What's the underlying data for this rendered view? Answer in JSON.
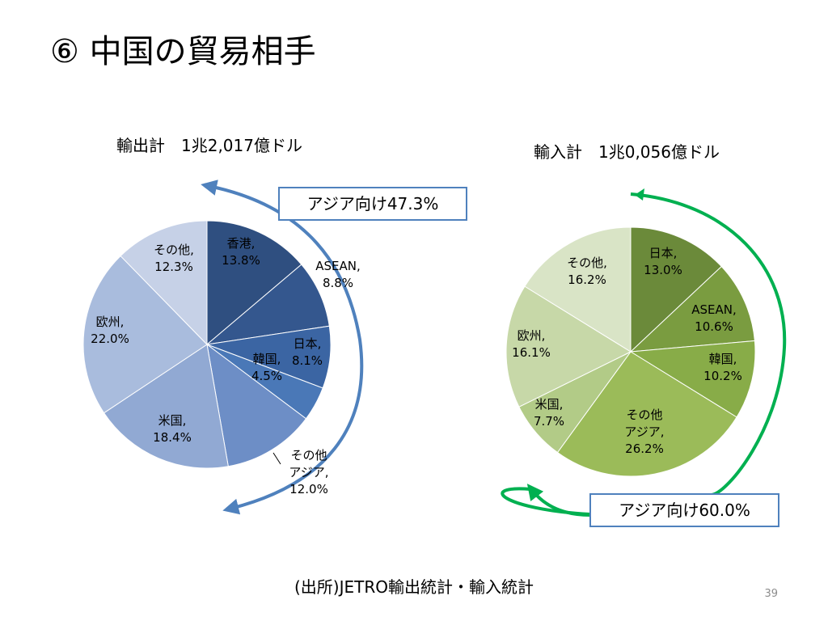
{
  "title": "⑥ 中国の貿易相手",
  "source": "(出所)JETRO輸出統計・輸入統計",
  "page_number": "39",
  "chart_data": [
    {
      "type": "pie",
      "title": "輸出計　1兆2,017億ドル",
      "callout": "アジア向け47.3%",
      "slices": [
        {
          "label": "香港",
          "value": 13.8,
          "text": "13.8%",
          "color": "#2f4f80"
        },
        {
          "label": "ASEAN",
          "value": 8.8,
          "text": "8.8%",
          "color": "#34578e"
        },
        {
          "label": "日本",
          "value": 8.1,
          "text": "8.1%",
          "color": "#3b65a3"
        },
        {
          "label": "韓国",
          "value": 4.5,
          "text": "4.5%",
          "color": "#4a78b7"
        },
        {
          "label": "その他アジア",
          "value": 12.0,
          "text": "12.0%",
          "color": "#6d8ec6"
        },
        {
          "label": "米国",
          "value": 18.4,
          "text": "18.4%",
          "color": "#91a9d3"
        },
        {
          "label": "欧州",
          "value": 22.0,
          "text": "22.0%",
          "color": "#a9bcdd"
        },
        {
          "label": "その他",
          "value": 12.3,
          "text": "12.3%",
          "color": "#c6d1e7"
        }
      ]
    },
    {
      "type": "pie",
      "title": "輸入計　1兆0,056億ドル",
      "callout": "アジア向け60.0%",
      "slices": [
        {
          "label": "日本",
          "value": 13.0,
          "text": "13.0%",
          "color": "#6b8a3a"
        },
        {
          "label": "ASEAN",
          "value": 10.6,
          "text": "10.6%",
          "color": "#7a9c40"
        },
        {
          "label": "韓国",
          "value": 10.2,
          "text": "10.2%",
          "color": "#88ac48"
        },
        {
          "label": "その他アジア",
          "value": 26.2,
          "text": "26.2%",
          "color": "#9bbb59"
        },
        {
          "label": "米国",
          "value": 7.7,
          "text": "7.7%",
          "color": "#b2cb87"
        },
        {
          "label": "欧州",
          "value": 16.1,
          "text": "16.1%",
          "color": "#c7d8a8"
        },
        {
          "label": "その他",
          "value": 16.2,
          "text": "16.2%",
          "color": "#d9e4c6"
        }
      ]
    }
  ]
}
